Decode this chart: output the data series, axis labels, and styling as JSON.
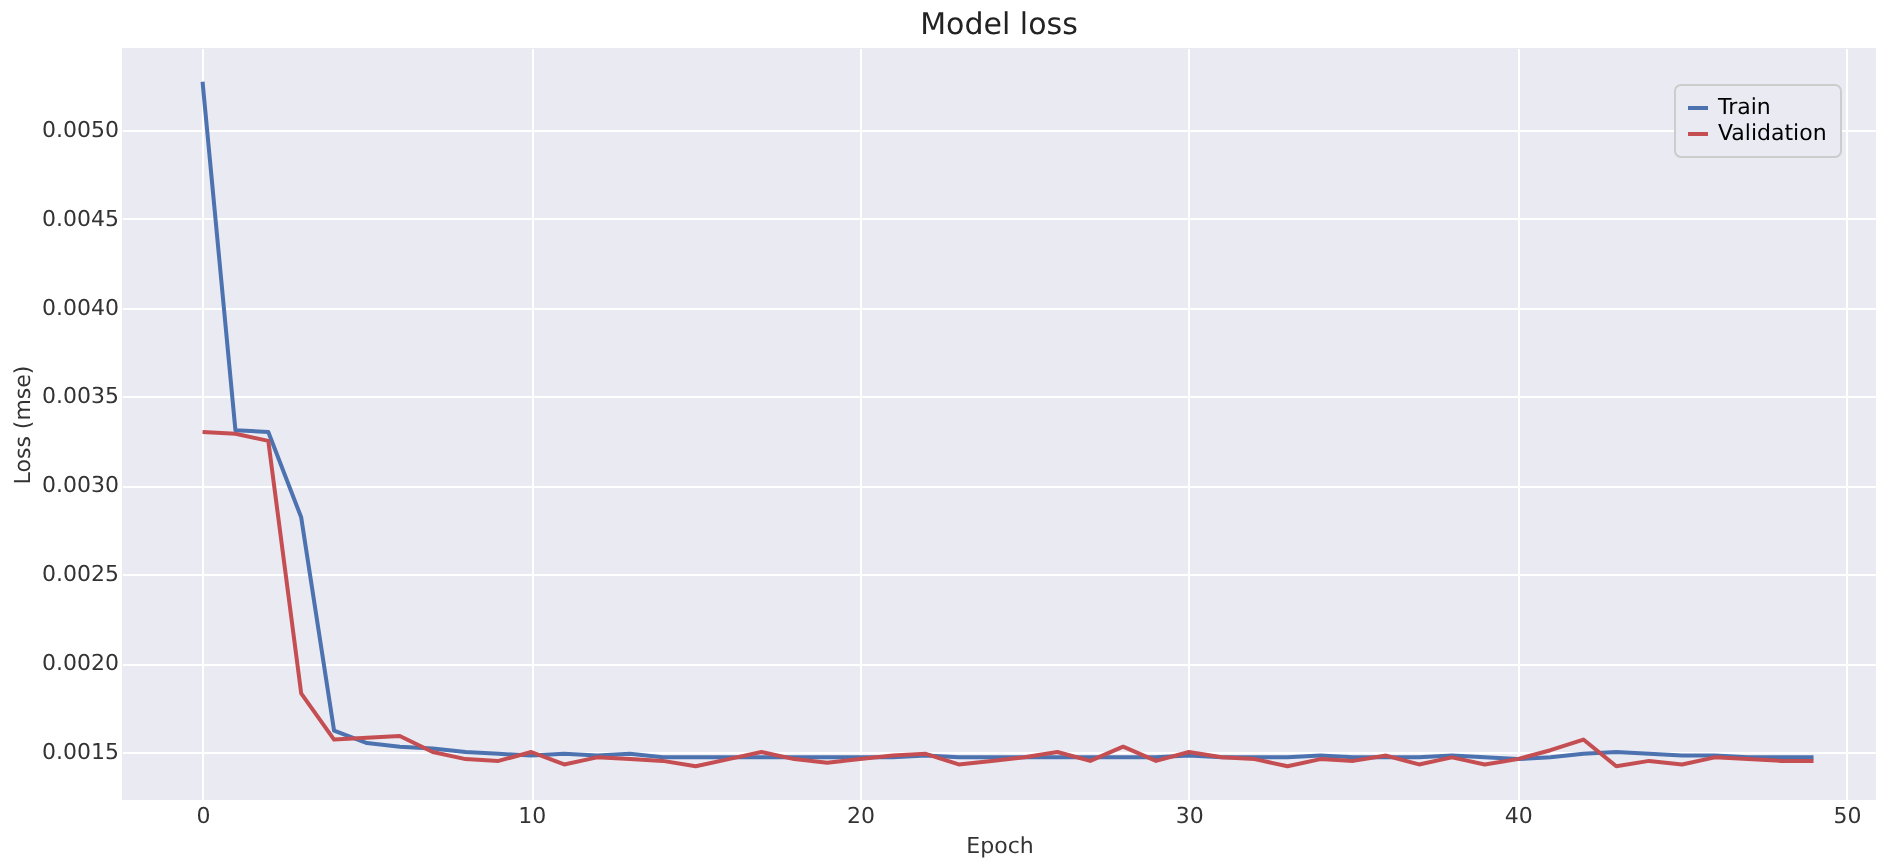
{
  "chart_data": {
    "type": "line",
    "title": "Model loss",
    "xlabel": "Epoch",
    "ylabel": "Loss (mse)",
    "x": [
      0,
      1,
      2,
      3,
      4,
      5,
      6,
      7,
      8,
      9,
      10,
      11,
      12,
      13,
      14,
      15,
      16,
      17,
      18,
      19,
      20,
      21,
      22,
      23,
      24,
      25,
      26,
      27,
      28,
      29,
      30,
      31,
      32,
      33,
      34,
      35,
      36,
      37,
      38,
      39,
      40,
      41,
      42,
      43,
      44,
      45,
      46,
      47,
      48,
      49
    ],
    "series": [
      {
        "name": "Train",
        "color": "#4c72b0",
        "values": [
          0.00527,
          0.00331,
          0.0033,
          0.00282,
          0.00162,
          0.00155,
          0.00153,
          0.00152,
          0.0015,
          0.00149,
          0.00148,
          0.00149,
          0.00148,
          0.00149,
          0.00147,
          0.00147,
          0.00147,
          0.00147,
          0.00147,
          0.00147,
          0.00147,
          0.00147,
          0.00148,
          0.00147,
          0.00147,
          0.00147,
          0.00147,
          0.00147,
          0.00147,
          0.00147,
          0.00148,
          0.00147,
          0.00147,
          0.00147,
          0.00148,
          0.00147,
          0.00147,
          0.00147,
          0.00148,
          0.00147,
          0.00146,
          0.00147,
          0.00149,
          0.0015,
          0.00149,
          0.00148,
          0.00148,
          0.00147,
          0.00147,
          0.00147
        ]
      },
      {
        "name": "Validation",
        "color": "#c44e52",
        "values": [
          0.0033,
          0.00329,
          0.00325,
          0.00183,
          0.00157,
          0.00158,
          0.00159,
          0.0015,
          0.00146,
          0.00145,
          0.0015,
          0.00143,
          0.00147,
          0.00146,
          0.00145,
          0.00142,
          0.00146,
          0.0015,
          0.00146,
          0.00144,
          0.00146,
          0.00148,
          0.00149,
          0.00143,
          0.00145,
          0.00147,
          0.0015,
          0.00145,
          0.00153,
          0.00145,
          0.0015,
          0.00147,
          0.00146,
          0.00142,
          0.00146,
          0.00145,
          0.00148,
          0.00143,
          0.00147,
          0.00143,
          0.00146,
          0.00151,
          0.00157,
          0.00142,
          0.00145,
          0.00143,
          0.00147,
          0.00146,
          0.00145,
          0.00145
        ]
      }
    ],
    "xlim": [
      -2.45,
      50.9
    ],
    "xticks": [
      0,
      10,
      20,
      30,
      40,
      50
    ],
    "ylim": [
      0.00123,
      0.00546
    ],
    "yticks": [
      {
        "value": 0.0015,
        "label": "0.0015"
      },
      {
        "value": 0.002,
        "label": "0.0020"
      },
      {
        "value": 0.0025,
        "label": "0.0025"
      },
      {
        "value": 0.003,
        "label": "0.0030"
      },
      {
        "value": 0.0035,
        "label": "0.0035"
      },
      {
        "value": 0.004,
        "label": "0.0040"
      },
      {
        "value": 0.0045,
        "label": "0.0045"
      },
      {
        "value": 0.005,
        "label": "0.0050"
      }
    ],
    "grid": true,
    "legend": "top right",
    "line_style": "solid"
  }
}
